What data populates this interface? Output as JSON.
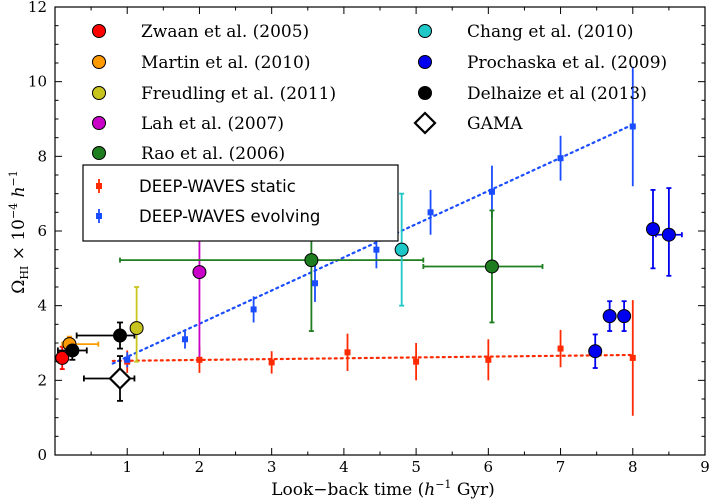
{
  "chart_data": {
    "type": "scatter",
    "xlabel": "Look−back time (",
    "xlabel_unit": "h",
    "xlabel_sup": "−1",
    "xlabel_tail": " Gyr)",
    "ylabel_main": "Ω",
    "ylabel_sub": "HI",
    "ylabel_mid": " × 10",
    "ylabel_sup": "−4",
    "ylabel_h": " h",
    "ylabel_sup2": "−1",
    "xlim": [
      0,
      9
    ],
    "ylim": [
      0,
      12
    ],
    "xticks": [
      "1",
      "2",
      "3",
      "4",
      "5",
      "6",
      "7",
      "8",
      "9"
    ],
    "yticks": [
      "0",
      "2",
      "4",
      "6",
      "8",
      "10",
      "12"
    ],
    "grid": false,
    "literature_series": [
      {
        "name": "Zwaan et al. (2005)",
        "color": "#ff0000",
        "marker": "circle",
        "points": [
          {
            "x": 0.1,
            "y": 2.6,
            "xerr": [
              0.08,
              0.08
            ],
            "yerr": [
              0.3,
              0.3
            ]
          }
        ]
      },
      {
        "name": "Martin et al. (2010)",
        "color": "#ff9a00",
        "marker": "circle",
        "points": [
          {
            "x": 0.2,
            "y": 2.97,
            "xerr": [
              0.1,
              0.4
            ],
            "yerr": [
              0.2,
              0.2
            ]
          }
        ]
      },
      {
        "name": "Freudling et al. (2011)",
        "color": "#c8c41e",
        "marker": "circle",
        "points": [
          {
            "x": 1.13,
            "y": 3.4,
            "xerr": [
              0,
              0
            ],
            "yerr": [
              0.9,
              1.1
            ]
          }
        ]
      },
      {
        "name": "Lah et al. (2007)",
        "color": "#c800c8",
        "marker": "circle",
        "points": [
          {
            "x": 2.0,
            "y": 4.9,
            "xerr": [
              0,
              0
            ],
            "yerr": [
              2.4,
              2.4
            ]
          }
        ]
      },
      {
        "name": "Rao et al. (2006)",
        "color": "#1e7d1e",
        "marker": "circle",
        "points": [
          {
            "x": 3.55,
            "y": 5.22,
            "xerr": [
              2.65,
              1.55
            ],
            "yerr": [
              1.9,
              1.8
            ]
          },
          {
            "x": 6.05,
            "y": 5.05,
            "xerr": [
              0.95,
              0.7
            ],
            "yerr": [
              1.5,
              1.5
            ]
          }
        ]
      },
      {
        "name": "Chang et al. (2010)",
        "color": "#1ec8c8",
        "marker": "circle",
        "points": [
          {
            "x": 4.8,
            "y": 5.5,
            "xerr": [
              0,
              0
            ],
            "yerr": [
              1.5,
              1.5
            ]
          }
        ]
      },
      {
        "name": "Prochaska et al. (2009)",
        "color": "#0000f0",
        "marker": "circle",
        "points": [
          {
            "x": 7.48,
            "y": 2.78,
            "xerr": [
              0,
              0
            ],
            "yerr": [
              0.45,
              0.45
            ]
          },
          {
            "x": 7.68,
            "y": 3.72,
            "xerr": [
              0,
              0
            ],
            "yerr": [
              0.4,
              0.4
            ]
          },
          {
            "x": 7.88,
            "y": 3.72,
            "xerr": [
              0,
              0
            ],
            "yerr": [
              0.4,
              0.4
            ]
          },
          {
            "x": 8.28,
            "y": 6.05,
            "xerr": [
              0,
              0
            ],
            "yerr": [
              1.05,
              1.05
            ]
          },
          {
            "x": 8.5,
            "y": 5.9,
            "xerr": [
              0.18,
              0.18
            ],
            "yerr": [
              1.1,
              1.25
            ]
          }
        ]
      },
      {
        "name": "Delhaize et al (2013)",
        "color": "#000000",
        "marker": "circle",
        "points": [
          {
            "x": 0.24,
            "y": 2.8,
            "xerr": [
              0.2,
              0.2
            ],
            "yerr": [
              0.25,
              0.25
            ]
          },
          {
            "x": 0.9,
            "y": 3.2,
            "xerr": [
              0.6,
              0.2
            ],
            "yerr": [
              0.35,
              0.35
            ]
          }
        ]
      },
      {
        "name": "GAMA",
        "color": "#000000",
        "marker": "diamond-open",
        "points": [
          {
            "x": 0.9,
            "y": 2.05,
            "xerr": [
              0.5,
              0.2
            ],
            "yerr": [
              0.6,
              0.6
            ]
          }
        ]
      }
    ],
    "deep_series": [
      {
        "name": "DEEP-WAVES static",
        "color": "#ff2a00",
        "marker": "square",
        "fit": {
          "x": [
            0.8,
            8.0
          ],
          "y": [
            2.52,
            2.68
          ]
        },
        "points": [
          {
            "x": 1.0,
            "y": 2.5,
            "yerr": [
              0.3,
              0.3
            ]
          },
          {
            "x": 2.0,
            "y": 2.55,
            "yerr": [
              0.35,
              0.35
            ]
          },
          {
            "x": 3.0,
            "y": 2.48,
            "yerr": [
              0.3,
              0.3
            ]
          },
          {
            "x": 4.05,
            "y": 2.75,
            "yerr": [
              0.5,
              0.5
            ]
          },
          {
            "x": 5.0,
            "y": 2.5,
            "yerr": [
              0.5,
              0.5
            ]
          },
          {
            "x": 6.0,
            "y": 2.55,
            "yerr": [
              0.55,
              0.55
            ]
          },
          {
            "x": 7.0,
            "y": 2.85,
            "yerr": [
              0.5,
              0.5
            ]
          },
          {
            "x": 8.0,
            "y": 2.6,
            "yerr": [
              1.55,
              1.55
            ]
          }
        ]
      },
      {
        "name": "DEEP-WAVES evolving",
        "color": "#1a4dff",
        "marker": "square",
        "fit": {
          "x": [
            0.8,
            8.0
          ],
          "y": [
            2.45,
            8.85
          ]
        },
        "points": [
          {
            "x": 1.0,
            "y": 2.55,
            "yerr": [
              0.2,
              0.2
            ]
          },
          {
            "x": 1.8,
            "y": 3.1,
            "yerr": [
              0.25,
              0.25
            ]
          },
          {
            "x": 2.75,
            "y": 3.9,
            "yerr": [
              0.35,
              0.35
            ]
          },
          {
            "x": 3.6,
            "y": 4.6,
            "yerr": [
              0.5,
              0.5
            ]
          },
          {
            "x": 4.45,
            "y": 5.5,
            "yerr": [
              0.5,
              0.5
            ]
          },
          {
            "x": 5.2,
            "y": 6.5,
            "yerr": [
              0.6,
              0.6
            ]
          },
          {
            "x": 6.05,
            "y": 7.05,
            "yerr": [
              0.7,
              0.7
            ]
          },
          {
            "x": 7.0,
            "y": 7.95,
            "yerr": [
              0.6,
              0.6
            ]
          },
          {
            "x": 8.0,
            "y": 8.8,
            "yerr": [
              1.6,
              1.6
            ]
          }
        ]
      }
    ]
  }
}
